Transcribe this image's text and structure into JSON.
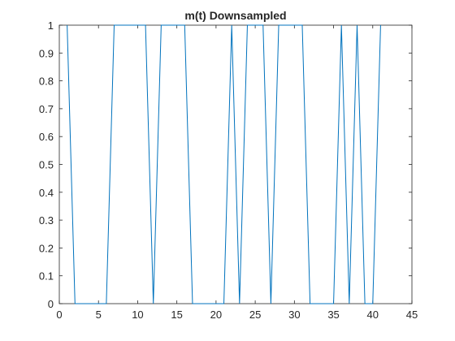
{
  "chart_data": {
    "type": "line",
    "title": "m(t) Downsampled",
    "xlabel": "",
    "ylabel": "",
    "xlim": [
      0,
      45
    ],
    "ylim": [
      0,
      1
    ],
    "grid": false,
    "xticks": [
      0,
      5,
      10,
      15,
      20,
      25,
      30,
      35,
      40,
      45
    ],
    "yticks": [
      0,
      0.1,
      0.2,
      0.3,
      0.4,
      0.5,
      0.6,
      0.7,
      0.8,
      0.9,
      1
    ],
    "xtick_labels": [
      "0",
      "5",
      "10",
      "15",
      "20",
      "25",
      "30",
      "35",
      "40",
      "45"
    ],
    "ytick_labels": [
      "0",
      "0.1",
      "0.2",
      "0.3",
      "0.4",
      "0.5",
      "0.6",
      "0.7",
      "0.8",
      "0.9",
      "1"
    ],
    "line_color": "#0072bd",
    "series": [
      {
        "x": [
          1,
          2,
          3,
          4,
          5,
          6,
          7,
          8,
          9,
          10,
          11,
          12,
          13,
          14,
          15,
          16,
          17,
          18,
          19,
          20,
          21,
          22,
          23,
          24,
          25,
          26,
          27,
          28,
          29,
          30,
          31,
          32,
          33,
          34,
          35,
          36,
          37,
          38,
          39,
          40,
          41
        ],
        "values": [
          1,
          0,
          0,
          0,
          0,
          0,
          1,
          1,
          1,
          1,
          1,
          0,
          1,
          1,
          1,
          1,
          0,
          0,
          0,
          0,
          0,
          1,
          0,
          1,
          1,
          1,
          0,
          1,
          1,
          1,
          1,
          0,
          0,
          0,
          0,
          1,
          0,
          1,
          0,
          0,
          1
        ]
      }
    ]
  }
}
